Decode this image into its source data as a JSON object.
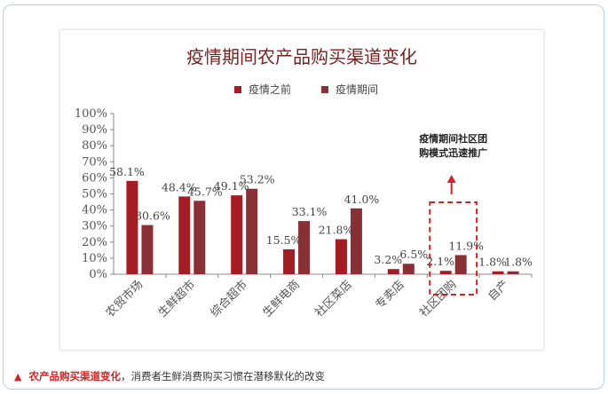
{
  "chart_data": {
    "type": "bar",
    "title": "疫情期间农产品购买渠道变化",
    "categories": [
      "农贸市场",
      "生鲜超市",
      "综合超市",
      "生鲜电商",
      "社区菜店",
      "专卖店",
      "社区团购",
      "自产"
    ],
    "series": [
      {
        "name": "疫情之前",
        "values": [
          58.1,
          48.4,
          49.1,
          15.5,
          21.8,
          3.2,
          2.1,
          1.8
        ]
      },
      {
        "name": "疫情期间",
        "values": [
          30.6,
          45.7,
          53.2,
          33.1,
          41.0,
          6.5,
          11.9,
          1.8
        ]
      }
    ],
    "data_labels_before": [
      "58.1%",
      "48.4%",
      "49.1%",
      "15.5%",
      "21.8%",
      "3.2%",
      "2.1%",
      "1.8%"
    ],
    "data_labels_during": [
      "30.6%",
      "45.7%",
      "53.2%",
      "33.1%",
      "41.0%",
      "6.5%",
      "11.9%",
      "1.8%"
    ],
    "y_ticks": [
      "0%",
      "10%",
      "20%",
      "30%",
      "40%",
      "50%",
      "60%",
      "70%",
      "80%",
      "90%",
      "100%"
    ],
    "ylim": [
      0,
      100
    ],
    "grid": false,
    "legend_position": "top",
    "annotation": [
      "疫情期间社区团",
      "购模式迅速推广"
    ],
    "colors": {
      "before": "#a51c24",
      "during": "#8a2f36"
    }
  },
  "caption": {
    "marker": "▲",
    "highlight": "农产品购买渠道变化",
    "text": "，消费者生鲜消费购买习惯在潜移默化的改变"
  }
}
